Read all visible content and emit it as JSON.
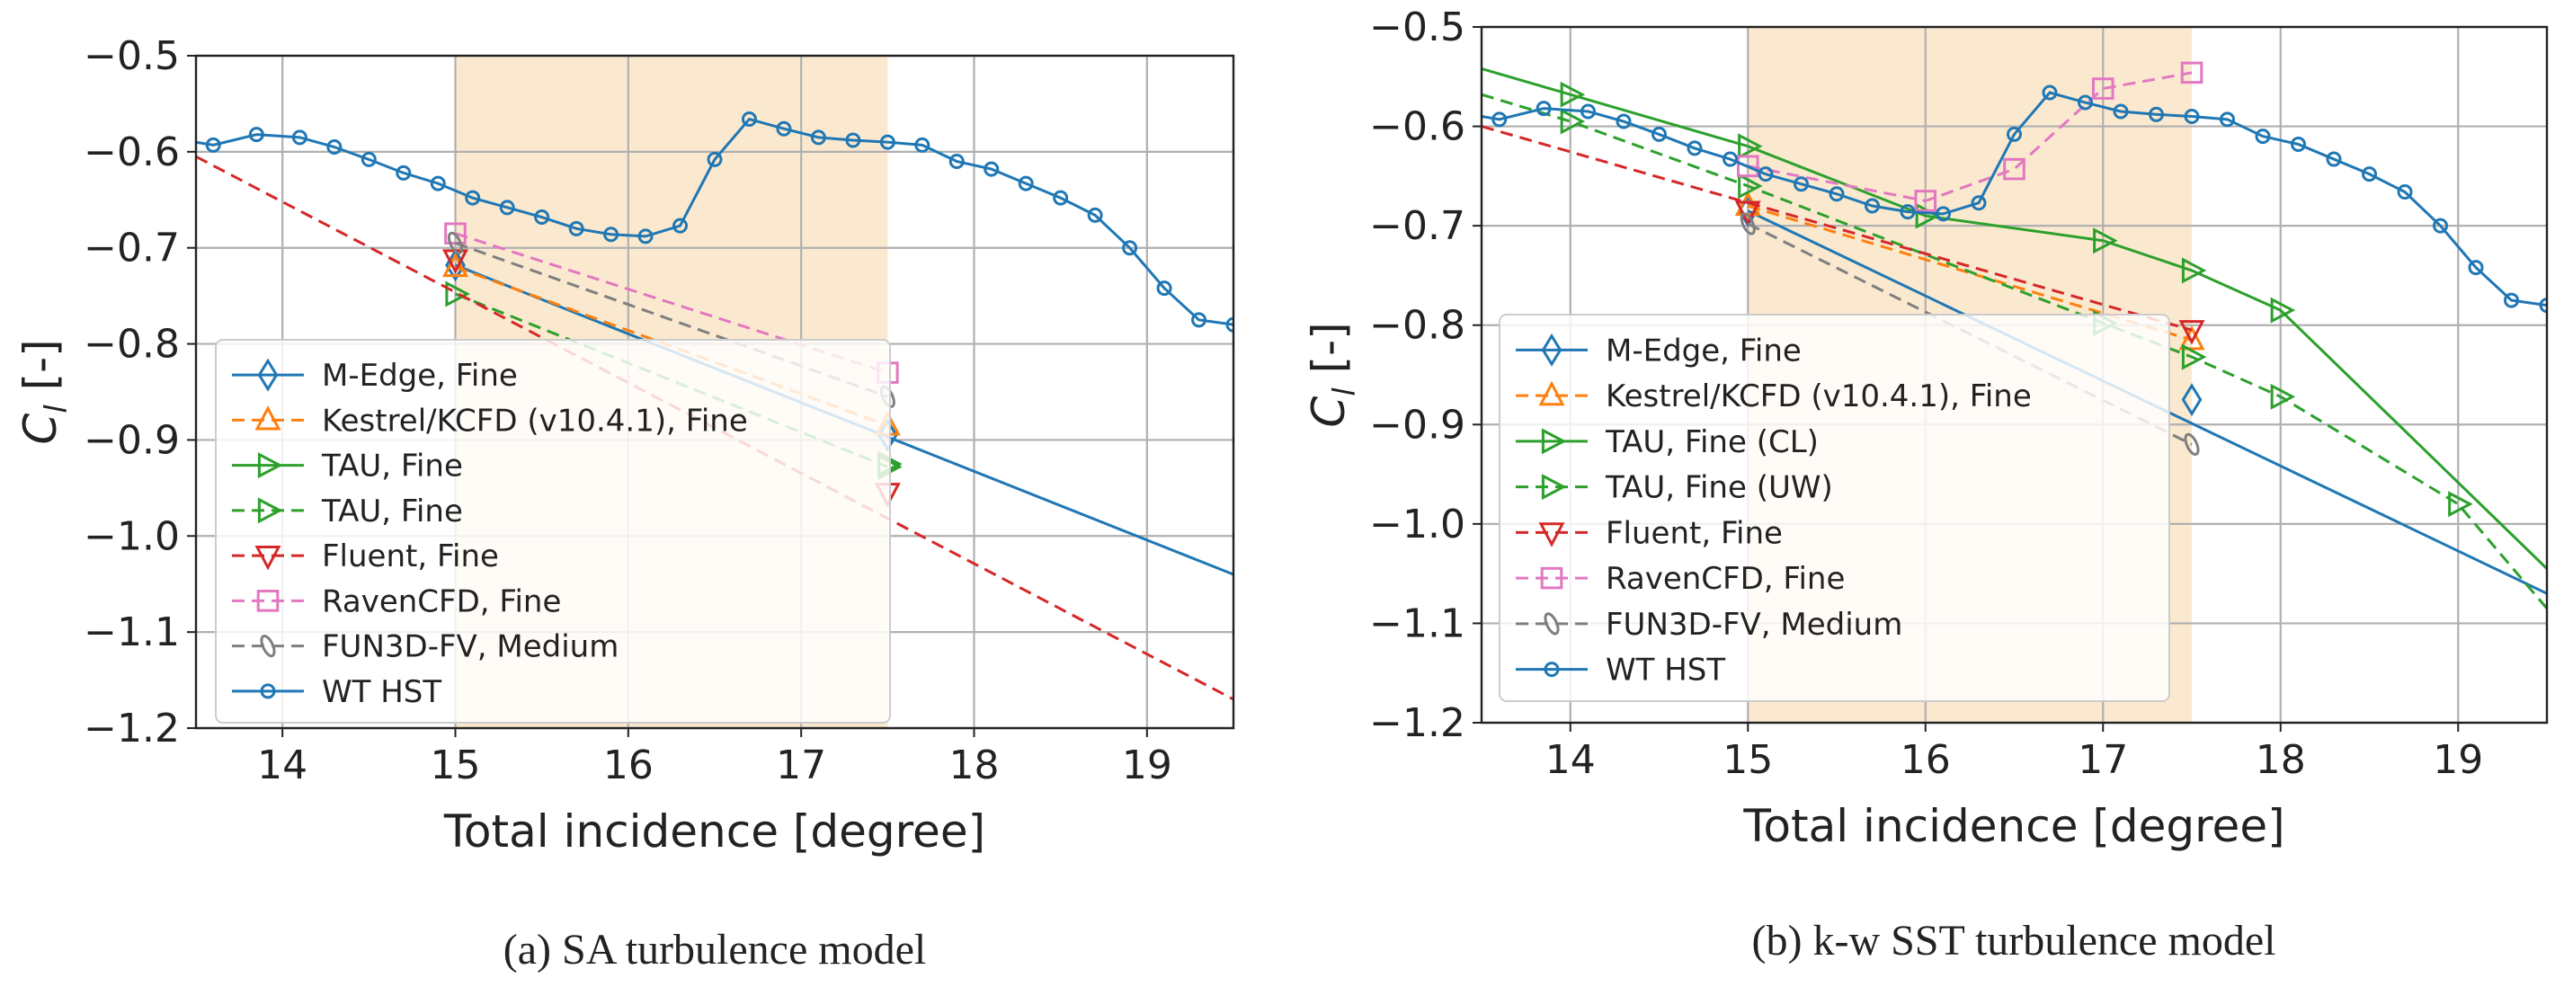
{
  "chart_data": [
    {
      "type": "line",
      "caption": "(a) SA turbulence model",
      "xlabel": "Total incidence [degree]",
      "ylabel_main": "C",
      "ylabel_sub": "l",
      "ylabel_suffix": " [-]",
      "xlim": [
        13.5,
        19.5
      ],
      "ylim": [
        -1.2,
        -0.5
      ],
      "xticks": [
        14,
        15,
        16,
        17,
        18,
        19
      ],
      "yticks": [
        -0.5,
        -0.6,
        -0.7,
        -0.8,
        -0.9,
        -1.0,
        -1.1,
        -1.2
      ],
      "xtick_labels": [
        "14",
        "15",
        "16",
        "17",
        "18",
        "19"
      ],
      "ytick_labels": [
        "−0.5",
        "−0.6",
        "−0.7",
        "−0.8",
        "−0.9",
        "−1.0",
        "−1.1",
        "−1.2"
      ],
      "grid": true,
      "shaded_region": {
        "x_from": 15.0,
        "x_to": 17.5,
        "color": "#fbe9cf"
      },
      "legend_position": "lower-left",
      "series": [
        {
          "name": "M-Edge, Fine",
          "color": "#1f77b4",
          "marker": "diamond",
          "dash": "solid",
          "marker_x": [
            15.0,
            17.5
          ],
          "marker_y": [
            -0.718,
            -0.895
          ],
          "line_x": [
            15.0,
            19.5
          ],
          "line_y": [
            -0.718,
            -1.04
          ]
        },
        {
          "name": "Kestrel/KCFD (v10.4.1), Fine",
          "color": "#ff7f0e",
          "marker": "triangle-up",
          "dash": "dashed",
          "marker_x": [
            15.0,
            17.5
          ],
          "marker_y": [
            -0.72,
            -0.885
          ],
          "line_x": [
            15.0,
            17.5
          ],
          "line_y": [
            -0.72,
            -0.885
          ]
        },
        {
          "name": "TAU, Fine",
          "color": "#2ca02c",
          "marker": "triangle-right",
          "dash": "solid",
          "marker_x": [
            17.5
          ],
          "marker_y": [
            -0.925
          ],
          "line_x": [],
          "line_y": []
        },
        {
          "name": "TAU, Fine",
          "color": "#2ca02c",
          "marker": "triangle-right",
          "dash": "dashed",
          "marker_x": [
            15.0,
            17.5
          ],
          "marker_y": [
            -0.748,
            -0.928
          ],
          "line_x": [
            15.0,
            17.5
          ],
          "line_y": [
            -0.748,
            -0.928
          ]
        },
        {
          "name": "Fluent, Fine",
          "color": "#d62728",
          "marker": "triangle-down",
          "dash": "dashed",
          "marker_x": [
            15.0,
            17.5
          ],
          "marker_y": [
            -0.712,
            -0.955
          ],
          "line_x": [
            13.5,
            19.5
          ],
          "line_y": [
            -0.605,
            -1.17
          ]
        },
        {
          "name": "RavenCFD, Fine",
          "color": "#e377c2",
          "marker": "square",
          "dash": "dashed",
          "marker_x": [
            15.0,
            17.5
          ],
          "marker_y": [
            -0.685,
            -0.83
          ],
          "line_x": [
            15.0,
            17.5
          ],
          "line_y": [
            -0.685,
            -0.83
          ]
        },
        {
          "name": "FUN3D-FV, Medium",
          "color": "#7f7f7f",
          "marker": "thin-ellipse",
          "dash": "dashed",
          "marker_x": [
            15.0,
            17.5
          ],
          "marker_y": [
            -0.695,
            -0.855
          ],
          "line_x": [
            15.0,
            17.5
          ],
          "line_y": [
            -0.695,
            -0.855
          ]
        },
        {
          "name": "WT HST",
          "color": "#1f77b4",
          "marker": "circle",
          "dash": "solid",
          "marker_x": [
            13.6,
            13.85,
            14.1,
            14.3,
            14.5,
            14.7,
            14.9,
            15.1,
            15.3,
            15.5,
            15.7,
            15.9,
            16.1,
            16.3,
            16.5,
            16.7,
            16.9,
            17.1,
            17.3,
            17.5,
            17.7,
            17.9,
            18.1,
            18.3,
            18.5,
            18.7,
            18.9,
            19.1,
            19.3,
            19.5
          ],
          "marker_y": [
            -0.593,
            -0.582,
            -0.585,
            -0.595,
            -0.608,
            -0.622,
            -0.633,
            -0.648,
            -0.658,
            -0.668,
            -0.68,
            -0.686,
            -0.688,
            -0.677,
            -0.608,
            -0.566,
            -0.576,
            -0.585,
            -0.588,
            -0.59,
            -0.593,
            -0.61,
            -0.618,
            -0.633,
            -0.648,
            -0.666,
            -0.7,
            -0.742,
            -0.775,
            -0.78
          ],
          "line_x": [
            13.5,
            13.6,
            13.85,
            14.1,
            14.3,
            14.5,
            14.7,
            14.9,
            15.1,
            15.3,
            15.5,
            15.7,
            15.9,
            16.1,
            16.3,
            16.5,
            16.7,
            16.9,
            17.1,
            17.3,
            17.5,
            17.7,
            17.9,
            18.1,
            18.3,
            18.5,
            18.7,
            18.9,
            19.1,
            19.3,
            19.5
          ],
          "line_y": [
            -0.59,
            -0.593,
            -0.582,
            -0.585,
            -0.595,
            -0.608,
            -0.622,
            -0.633,
            -0.648,
            -0.658,
            -0.668,
            -0.68,
            -0.686,
            -0.688,
            -0.677,
            -0.608,
            -0.566,
            -0.576,
            -0.585,
            -0.588,
            -0.59,
            -0.593,
            -0.61,
            -0.618,
            -0.633,
            -0.648,
            -0.666,
            -0.7,
            -0.742,
            -0.775,
            -0.78
          ]
        }
      ]
    },
    {
      "type": "line",
      "caption": "(b) k-w SST turbulence model",
      "xlabel": "Total incidence [degree]",
      "ylabel_main": "C",
      "ylabel_sub": "l",
      "ylabel_suffix": " [-]",
      "xlim": [
        13.5,
        19.5
      ],
      "ylim": [
        -1.2,
        -0.5
      ],
      "xticks": [
        14,
        15,
        16,
        17,
        18,
        19
      ],
      "yticks": [
        -0.5,
        -0.6,
        -0.7,
        -0.8,
        -0.9,
        -1.0,
        -1.1,
        -1.2
      ],
      "xtick_labels": [
        "14",
        "15",
        "16",
        "17",
        "18",
        "19"
      ],
      "ytick_labels": [
        "−0.5",
        "−0.6",
        "−0.7",
        "−0.8",
        "−0.9",
        "−1.0",
        "−1.1",
        "−1.2"
      ],
      "grid": true,
      "shaded_region": {
        "x_from": 15.0,
        "x_to": 17.5,
        "color": "#fbe9cf"
      },
      "legend_position": "lower-left",
      "series": [
        {
          "name": "M-Edge, Fine",
          "color": "#1f77b4",
          "marker": "diamond",
          "dash": "solid",
          "marker_x": [
            15.0,
            17.5
          ],
          "marker_y": [
            -0.685,
            -0.875
          ],
          "line_x": [
            15.0,
            19.5
          ],
          "line_y": [
            -0.685,
            -1.07
          ]
        },
        {
          "name": "Kestrel/KCFD (v10.4.1), Fine",
          "color": "#ff7f0e",
          "marker": "triangle-up",
          "dash": "dashed",
          "marker_x": [
            15.0,
            17.5
          ],
          "marker_y": [
            -0.68,
            -0.815
          ],
          "line_x": [
            15.0,
            17.5
          ],
          "line_y": [
            -0.68,
            -0.815
          ]
        },
        {
          "name": "TAU, Fine (CL)",
          "color": "#2ca02c",
          "marker": "triangle-right",
          "dash": "solid",
          "marker_x": [
            14.0,
            15.0,
            16.0,
            17.0,
            17.5,
            18.0
          ],
          "marker_y": [
            -0.568,
            -0.62,
            -0.69,
            -0.715,
            -0.745,
            -0.785
          ],
          "line_x": [
            13.5,
            14.0,
            15.0,
            16.0,
            17.0,
            17.5,
            18.0,
            19.5
          ],
          "line_y": [
            -0.542,
            -0.568,
            -0.62,
            -0.69,
            -0.715,
            -0.745,
            -0.785,
            -1.045
          ]
        },
        {
          "name": "TAU, Fine (UW)",
          "color": "#2ca02c",
          "marker": "triangle-right",
          "dash": "dashed",
          "marker_x": [
            14.0,
            15.0,
            17.0,
            17.5,
            18.0,
            19.0
          ],
          "marker_y": [
            -0.595,
            -0.66,
            -0.798,
            -0.832,
            -0.872,
            -0.98
          ],
          "line_x": [
            13.5,
            14.0,
            15.0,
            17.0,
            17.5,
            18.0,
            19.0,
            19.5
          ],
          "line_y": [
            -0.568,
            -0.595,
            -0.66,
            -0.798,
            -0.832,
            -0.872,
            -0.98,
            -1.085
          ]
        },
        {
          "name": "Fluent, Fine",
          "color": "#d62728",
          "marker": "triangle-down",
          "dash": "dashed",
          "marker_x": [
            15.0,
            17.5
          ],
          "marker_y": [
            -0.685,
            -0.805
          ],
          "line_x": [
            13.5,
            17.5
          ],
          "line_y": [
            -0.6,
            -0.805
          ]
        },
        {
          "name": "RavenCFD, Fine",
          "color": "#e377c2",
          "marker": "square",
          "dash": "dashed",
          "marker_x": [
            15.0,
            16.0,
            16.5,
            17.0,
            17.5
          ],
          "marker_y": [
            -0.64,
            -0.675,
            -0.643,
            -0.562,
            -0.546
          ],
          "line_x": [
            15.0,
            16.0,
            16.5,
            17.0,
            17.5
          ],
          "line_y": [
            -0.64,
            -0.675,
            -0.643,
            -0.562,
            -0.546
          ]
        },
        {
          "name": "FUN3D-FV, Medium",
          "color": "#7f7f7f",
          "marker": "thin-ellipse",
          "dash": "dashed",
          "marker_x": [
            15.0,
            17.5
          ],
          "marker_y": [
            -0.698,
            -0.92
          ],
          "line_x": [
            15.0,
            17.5
          ],
          "line_y": [
            -0.698,
            -0.92
          ]
        },
        {
          "name": "WT HST",
          "color": "#1f77b4",
          "marker": "circle",
          "dash": "solid",
          "marker_x": [
            13.6,
            13.85,
            14.1,
            14.3,
            14.5,
            14.7,
            14.9,
            15.1,
            15.3,
            15.5,
            15.7,
            15.9,
            16.1,
            16.3,
            16.5,
            16.7,
            16.9,
            17.1,
            17.3,
            17.5,
            17.7,
            17.9,
            18.1,
            18.3,
            18.5,
            18.7,
            18.9,
            19.1,
            19.3,
            19.5
          ],
          "marker_y": [
            -0.593,
            -0.582,
            -0.585,
            -0.595,
            -0.608,
            -0.622,
            -0.633,
            -0.648,
            -0.658,
            -0.668,
            -0.68,
            -0.686,
            -0.688,
            -0.677,
            -0.608,
            -0.566,
            -0.576,
            -0.585,
            -0.588,
            -0.59,
            -0.593,
            -0.61,
            -0.618,
            -0.633,
            -0.648,
            -0.666,
            -0.7,
            -0.742,
            -0.775,
            -0.78
          ],
          "line_x": [
            13.5,
            13.6,
            13.85,
            14.1,
            14.3,
            14.5,
            14.7,
            14.9,
            15.1,
            15.3,
            15.5,
            15.7,
            15.9,
            16.1,
            16.3,
            16.5,
            16.7,
            16.9,
            17.1,
            17.3,
            17.5,
            17.7,
            17.9,
            18.1,
            18.3,
            18.5,
            18.7,
            18.9,
            19.1,
            19.3,
            19.5
          ],
          "line_y": [
            -0.59,
            -0.593,
            -0.582,
            -0.585,
            -0.595,
            -0.608,
            -0.622,
            -0.633,
            -0.648,
            -0.658,
            -0.668,
            -0.68,
            -0.686,
            -0.688,
            -0.677,
            -0.608,
            -0.566,
            -0.576,
            -0.585,
            -0.588,
            -0.59,
            -0.593,
            -0.61,
            -0.618,
            -0.633,
            -0.648,
            -0.666,
            -0.7,
            -0.742,
            -0.775,
            -0.78
          ]
        }
      ]
    }
  ]
}
